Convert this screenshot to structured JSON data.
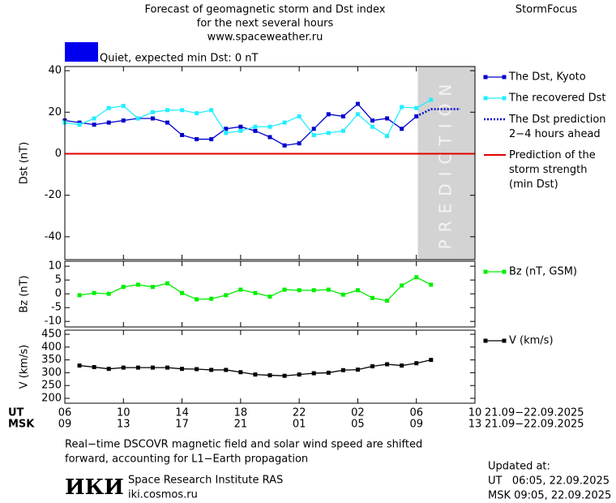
{
  "header": {
    "title": [
      "Forecast of geomagnetic storm and Dst index",
      "for the next several hours",
      "www.spaceweather.ru"
    ],
    "brand": "StormFocus",
    "status": "Quiet, expected min Dst: 0 nT",
    "status_color": "#0000ee"
  },
  "chart_data": [
    {
      "type": "line",
      "ylabel": "Dst (nT)",
      "xlim": [
        0,
        28
      ],
      "ylim": [
        -51,
        42
      ],
      "yticks": [
        -40,
        -20,
        0,
        20,
        40
      ],
      "shade": {
        "from": 24.1,
        "to": 28,
        "label": "PREDICTION",
        "color": "#d3d3d3"
      },
      "series": [
        {
          "name": "The Dst, Kyoto",
          "color": "#0000cc",
          "marker": "square",
          "x": [
            0,
            1,
            2,
            3,
            4,
            5,
            6,
            7,
            8,
            9,
            10,
            11,
            12,
            13,
            14,
            15,
            16,
            17,
            18,
            19,
            20,
            21,
            22,
            23,
            24
          ],
          "values": [
            16,
            15,
            14,
            15,
            16,
            17,
            17,
            15,
            9,
            7,
            7,
            12,
            13,
            11,
            8,
            4,
            5,
            12,
            19,
            18,
            24,
            16,
            17,
            12,
            18
          ]
        },
        {
          "name": "The recovered Dst",
          "color": "#22eeff",
          "marker": "square",
          "x": [
            0,
            1,
            2,
            3,
            4,
            5,
            6,
            7,
            8,
            9,
            10,
            11,
            12,
            13,
            14,
            15,
            16,
            17,
            18,
            19,
            20,
            21,
            22,
            23,
            24,
            25
          ],
          "values": [
            15,
            14,
            17,
            22,
            23,
            17,
            20,
            21,
            21,
            19.5,
            21,
            10,
            11,
            13,
            13,
            15,
            18,
            9,
            10,
            11,
            19,
            13,
            8.5,
            22.5,
            22,
            26
          ]
        },
        {
          "name": "The Dst prediction\n2−4 hours ahead",
          "color": "#0000cc",
          "dash": "dotted",
          "x": [
            24,
            25,
            26,
            27
          ],
          "values": [
            18,
            21.5,
            21.5,
            21.5
          ]
        },
        {
          "name": "Prediction of the\nstorm strength\n(min Dst)",
          "color": "#e00000",
          "hline": true,
          "values": [
            0
          ]
        }
      ]
    },
    {
      "type": "line",
      "ylabel": "Bz (nT)",
      "xlim": [
        0,
        28
      ],
      "ylim": [
        -12,
        11.8
      ],
      "yticks": [
        -10,
        -5,
        0,
        5,
        10
      ],
      "series": [
        {
          "name": "Bz (nT, GSM)",
          "color": "#00ee00",
          "marker": "square",
          "x": [
            1,
            2,
            3,
            4,
            5,
            6,
            7,
            8,
            9,
            10,
            11,
            12,
            13,
            14,
            15,
            16,
            17,
            18,
            19,
            20,
            21,
            22,
            23,
            24,
            25
          ],
          "values": [
            -0.5,
            0.3,
            0,
            2.5,
            3.3,
            2.5,
            3.8,
            0.3,
            -2,
            -1.8,
            -0.5,
            1.5,
            0.3,
            -1,
            1.5,
            1.3,
            1.3,
            1.5,
            -0.3,
            1.3,
            -1.5,
            -2.5,
            3,
            6,
            3.3
          ]
        }
      ]
    },
    {
      "type": "line",
      "ylabel": "V (km/s)",
      "xlim": [
        0,
        28
      ],
      "ylim": [
        181,
        466
      ],
      "yticks": [
        200,
        250,
        300,
        350,
        400,
        450
      ],
      "xlabel": "UT",
      "xticks": [
        {
          "value": 0,
          "label": "06"
        },
        {
          "value": 4,
          "label": "10"
        },
        {
          "value": 8,
          "label": "14"
        },
        {
          "value": 12,
          "label": "18"
        },
        {
          "value": 16,
          "label": "22"
        },
        {
          "value": 20,
          "label": "02"
        },
        {
          "value": 24,
          "label": "06"
        },
        {
          "value": 28,
          "label": "10"
        }
      ],
      "x2label": "MSK",
      "x2ticks": [
        {
          "value": 0,
          "label": "09"
        },
        {
          "value": 4,
          "label": "13"
        },
        {
          "value": 8,
          "label": "17"
        },
        {
          "value": 12,
          "label": "21"
        },
        {
          "value": 16,
          "label": "01"
        },
        {
          "value": 20,
          "label": "05"
        },
        {
          "value": 24,
          "label": "09"
        },
        {
          "value": 28,
          "label": "13"
        }
      ],
      "date_range": "21.09−22.09.2025",
      "x2date_range": "21.09−22.09.2025",
      "series": [
        {
          "name": "V (km/s)",
          "color": "#000000",
          "marker": "square",
          "x": [
            1,
            2,
            3,
            4,
            5,
            6,
            7,
            8,
            9,
            10,
            11,
            12,
            13,
            14,
            15,
            16,
            17,
            18,
            19,
            20,
            21,
            22,
            23,
            24,
            25
          ],
          "values": [
            328,
            322,
            315,
            320,
            320,
            320,
            320,
            315,
            314,
            311,
            311,
            302,
            293,
            290,
            288,
            293,
            298,
            300,
            310,
            312,
            325,
            333,
            328,
            337,
            350
          ]
        }
      ]
    }
  ],
  "footer": {
    "note": [
      "Real−time DSCOVR magnetic field and solar wind speed are shifted",
      "forward, accounting for L1−Earth propagation"
    ],
    "logo": "ИКИ",
    "institute": "Space Research Institute RAS",
    "site": "iki.cosmos.ru",
    "updated": [
      "Updated at:",
      "UT   06:05, 22.09.2025",
      "MSK 09:05, 22.09.2025"
    ]
  }
}
